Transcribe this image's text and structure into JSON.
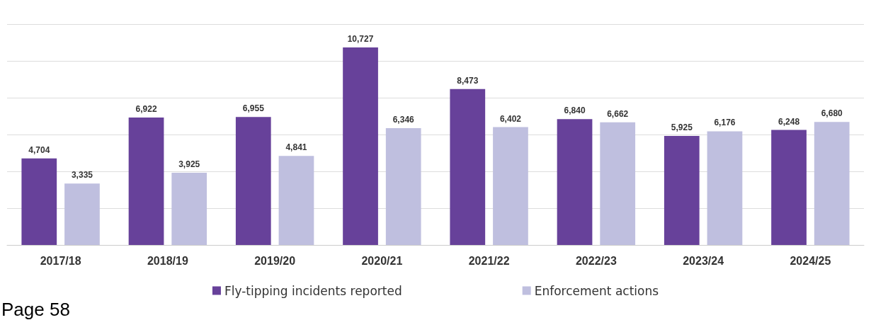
{
  "chart_data": {
    "type": "bar",
    "categories": [
      "2017/18",
      "2018/19",
      "2019/20",
      "2020/21",
      "2021/22",
      "2022/23",
      "2023/24",
      "2024/25"
    ],
    "series": [
      {
        "name": "Fly-tipping incidents reported",
        "color": "#67419a",
        "values": [
          4704,
          6922,
          6955,
          10727,
          8473,
          6840,
          5925,
          6248
        ],
        "value_labels": [
          "4,704",
          "6,922",
          "6,955",
          "10,727",
          "8,473",
          "6,840",
          "5,925",
          "6,248"
        ]
      },
      {
        "name": "Enforcement actions",
        "color": "#bfbfdf",
        "values": [
          3335,
          3925,
          4841,
          6346,
          6402,
          6662,
          6176,
          6680
        ],
        "value_labels": [
          "3,335",
          "3,925",
          "4,841",
          "6,346",
          "6,402",
          "6,662",
          "6,176",
          "6,680"
        ]
      }
    ],
    "tick_labels": "x",
    "grid": "y",
    "legend": "bottom",
    "annotations": [
      "Page 58"
    ]
  }
}
